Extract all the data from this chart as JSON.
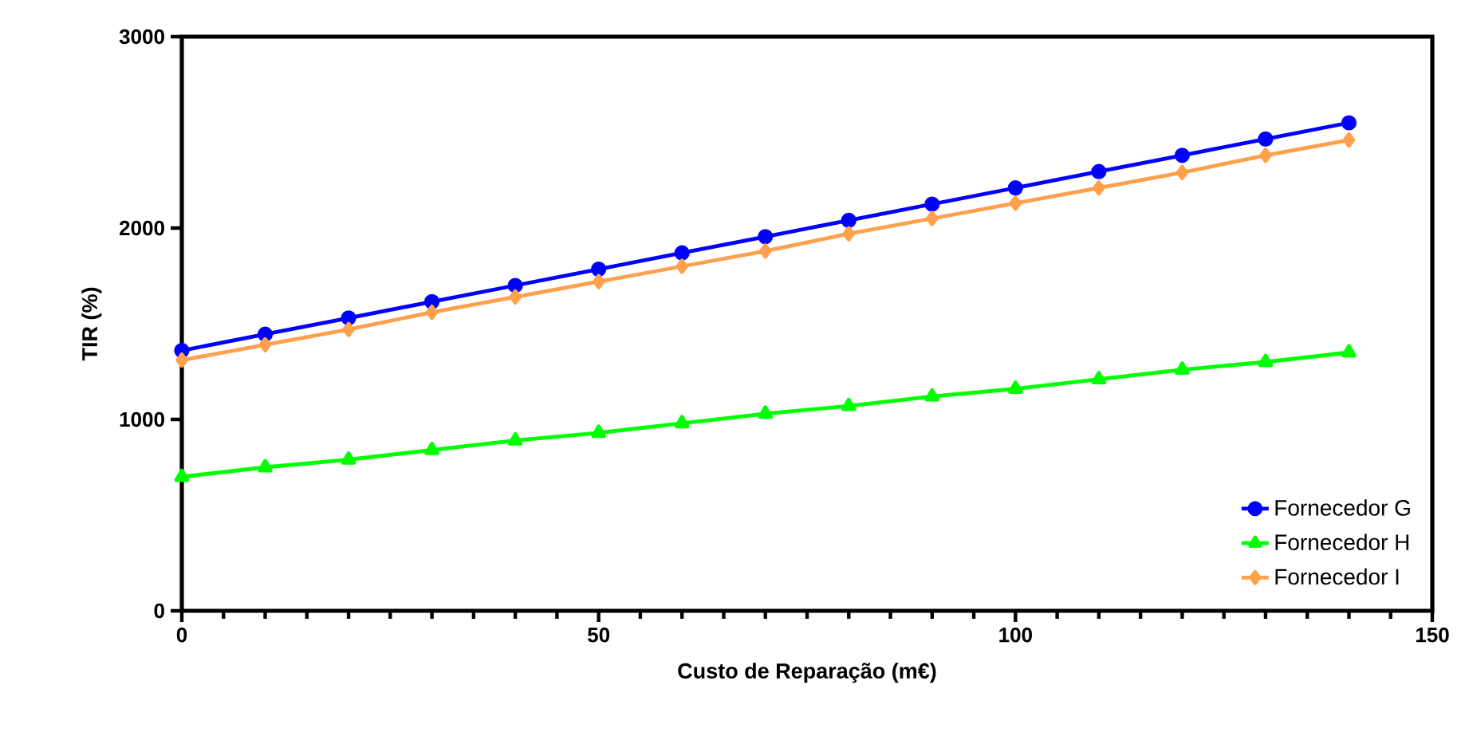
{
  "chart_data": {
    "type": "line",
    "xlabel": "Custo de Reparação (m€)",
    "ylabel": "TIR (%)",
    "x": [
      0,
      10,
      20,
      30,
      40,
      50,
      60,
      70,
      80,
      90,
      100,
      110,
      120,
      130,
      140
    ],
    "series": [
      {
        "name": "Fornecedor G",
        "color": "#0000ff",
        "marker": "circle",
        "values": [
          1360,
          1445,
          1530,
          1615,
          1700,
          1785,
          1870,
          1955,
          2040,
          2125,
          2210,
          2295,
          2380,
          2465,
          2550
        ]
      },
      {
        "name": "Fornecedor H",
        "color": "#00ff00",
        "marker": "triangle",
        "values": [
          700,
          750,
          790,
          840,
          890,
          930,
          980,
          1030,
          1070,
          1120,
          1160,
          1210,
          1260,
          1300,
          1350
        ]
      },
      {
        "name": "Fornecedor I",
        "color": "#ffa04d",
        "marker": "diamond",
        "values": [
          1310,
          1390,
          1470,
          1560,
          1640,
          1720,
          1800,
          1880,
          1970,
          2050,
          2130,
          2210,
          2290,
          2380,
          2460
        ]
      }
    ],
    "xlim": [
      0,
      150
    ],
    "xticks": [
      0,
      50,
      100,
      150
    ],
    "ylim": [
      0,
      3000
    ],
    "yticks": [
      0,
      1000,
      2000,
      3000
    ],
    "grid": false,
    "legend": "bottom right",
    "line_style": "solid"
  }
}
